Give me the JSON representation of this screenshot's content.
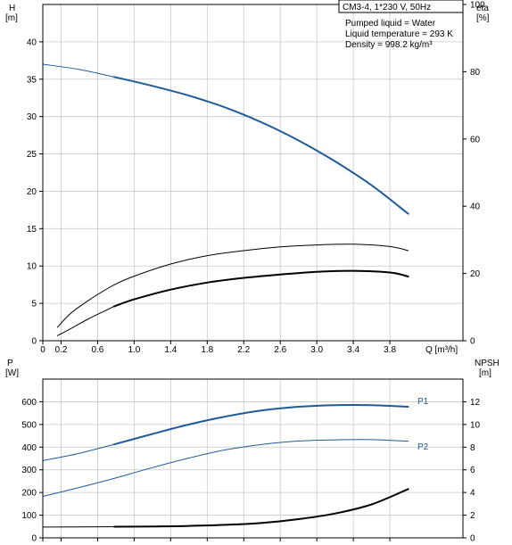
{
  "chart_data": [
    {
      "type": "line",
      "panel": "top",
      "info_box": {
        "title": "CM3-4, 1*230 V, 50Hz",
        "lines": [
          "Pumped liquid = Water",
          "Liquid temperature = 293 K",
          "Density = 998.2 kg/m³"
        ]
      },
      "x_axis": {
        "label": "Q [m³/h]",
        "range": [
          0,
          4.6
        ],
        "ticks": [
          0,
          0.2,
          0.6,
          1.0,
          1.4,
          1.8,
          2.2,
          2.6,
          3.0,
          3.4,
          3.8
        ],
        "tick_labels": [
          "0",
          "0.2",
          "0.6",
          "1.0",
          "1.4",
          "1.8",
          "2.2",
          "2.6",
          "3.0",
          "3.4",
          "3.8"
        ]
      },
      "y_axis_left": {
        "label_line1": "H",
        "label_line2": "[m]",
        "range": [
          0,
          45
        ],
        "ticks": [
          0,
          5,
          10,
          15,
          20,
          25,
          30,
          35,
          40
        ],
        "tick_labels": [
          "0",
          "5",
          "10",
          "15",
          "20",
          "25",
          "30",
          "35",
          "40"
        ]
      },
      "y_axis_right": {
        "label_line1": "eta",
        "label_line2": "[%]",
        "range": [
          0,
          100
        ],
        "ticks": [
          0,
          20,
          40,
          60,
          80,
          100
        ],
        "tick_labels": [
          "0",
          "20",
          "40",
          "60",
          "80",
          "100"
        ]
      },
      "series": [
        {
          "axis": "left",
          "color": "#1f5a99",
          "width": 1,
          "points": [
            [
              0,
              37.0
            ],
            [
              0.4,
              36.3
            ],
            [
              0.78,
              35.3
            ]
          ]
        },
        {
          "axis": "left",
          "color": "#1f5a99",
          "width": 2,
          "points": [
            [
              0.78,
              35.3
            ],
            [
              1.2,
              34.1
            ],
            [
              1.6,
              32.8
            ],
            [
              2.0,
              31.2
            ],
            [
              2.4,
              29.2
            ],
            [
              2.8,
              26.8
            ],
            [
              3.2,
              24.0
            ],
            [
              3.6,
              20.8
            ],
            [
              4.0,
              17.0
            ]
          ]
        },
        {
          "axis": "right",
          "color": "#000000",
          "width": 1,
          "points": [
            [
              0.16,
              4
            ],
            [
              0.3,
              8
            ],
            [
              0.5,
              12
            ],
            [
              0.78,
              16.6
            ],
            [
              1.0,
              19.2
            ],
            [
              1.4,
              22.8
            ],
            [
              1.8,
              25.3
            ],
            [
              2.2,
              26.8
            ],
            [
              2.6,
              27.9
            ],
            [
              3.0,
              28.5
            ],
            [
              3.4,
              28.7
            ],
            [
              3.8,
              28.0
            ],
            [
              4.0,
              26.8
            ]
          ]
        },
        {
          "axis": "right",
          "color": "#000000",
          "width": 1,
          "points": [
            [
              0.16,
              1.5
            ],
            [
              0.3,
              3.5
            ],
            [
              0.5,
              6.5
            ],
            [
              0.78,
              10.2
            ]
          ]
        },
        {
          "axis": "right",
          "color": "#000000",
          "width": 2,
          "points": [
            [
              0.78,
              10.2
            ],
            [
              1.0,
              12.3
            ],
            [
              1.4,
              15.2
            ],
            [
              1.8,
              17.3
            ],
            [
              2.2,
              18.7
            ],
            [
              2.6,
              19.7
            ],
            [
              3.0,
              20.5
            ],
            [
              3.4,
              20.8
            ],
            [
              3.8,
              20.3
            ],
            [
              4.0,
              19.1
            ]
          ]
        }
      ]
    },
    {
      "type": "line",
      "panel": "bottom",
      "x_axis": {
        "range": [
          0,
          4.6
        ],
        "ticks": [
          0,
          0.2,
          0.6,
          1.0,
          1.4,
          1.8,
          2.2,
          2.6,
          3.0,
          3.4,
          3.8
        ]
      },
      "y_axis_left": {
        "label_line1": "P",
        "label_line2": "[W]",
        "range": [
          0,
          700
        ],
        "ticks": [
          0,
          100,
          200,
          300,
          400,
          500,
          600
        ],
        "tick_labels": [
          "0",
          "100",
          "200",
          "300",
          "400",
          "500",
          "600"
        ]
      },
      "y_axis_right": {
        "label_line1": "NPSH",
        "label_line2": "[m]",
        "range": [
          0,
          14
        ],
        "ticks": [
          0,
          2,
          4,
          6,
          8,
          10,
          12
        ],
        "tick_labels": [
          "0",
          "2",
          "4",
          "6",
          "8",
          "10",
          "12"
        ]
      },
      "series": [
        {
          "name": "P1",
          "axis": "left",
          "color": "#1f5a99",
          "width": 1,
          "points": [
            [
              0,
              340
            ],
            [
              0.4,
              373
            ],
            [
              0.78,
              412
            ]
          ]
        },
        {
          "name": "P1",
          "axis": "left",
          "color": "#1f5a99",
          "width": 2,
          "points": [
            [
              0.78,
              412
            ],
            [
              1.2,
              458
            ],
            [
              1.6,
              500
            ],
            [
              2.0,
              535
            ],
            [
              2.4,
              562
            ],
            [
              2.8,
              578
            ],
            [
              3.2,
              585
            ],
            [
              3.6,
              585
            ],
            [
              4.0,
              578
            ]
          ]
        },
        {
          "name": "P2",
          "axis": "left",
          "color": "#1f5a99",
          "width": 1,
          "points": [
            [
              0,
              183
            ],
            [
              0.4,
              222
            ],
            [
              0.78,
              262
            ],
            [
              1.2,
              310
            ],
            [
              1.6,
              352
            ],
            [
              2.0,
              388
            ],
            [
              2.4,
              412
            ],
            [
              2.8,
              427
            ],
            [
              3.2,
              432
            ],
            [
              3.6,
              433
            ],
            [
              4.0,
              426
            ]
          ]
        },
        {
          "axis": "right",
          "color": "#000000",
          "width": 1,
          "points": [
            [
              0,
              0.95
            ],
            [
              0.78,
              0.98
            ]
          ]
        },
        {
          "axis": "right",
          "color": "#000000",
          "width": 2,
          "points": [
            [
              0.78,
              0.98
            ],
            [
              1.2,
              1.0
            ],
            [
              1.6,
              1.05
            ],
            [
              2.0,
              1.15
            ],
            [
              2.4,
              1.32
            ],
            [
              2.8,
              1.65
            ],
            [
              3.2,
              2.15
            ],
            [
              3.6,
              2.95
            ],
            [
              4.0,
              4.3
            ]
          ]
        }
      ],
      "series_labels": [
        "P1",
        "P2"
      ]
    }
  ]
}
